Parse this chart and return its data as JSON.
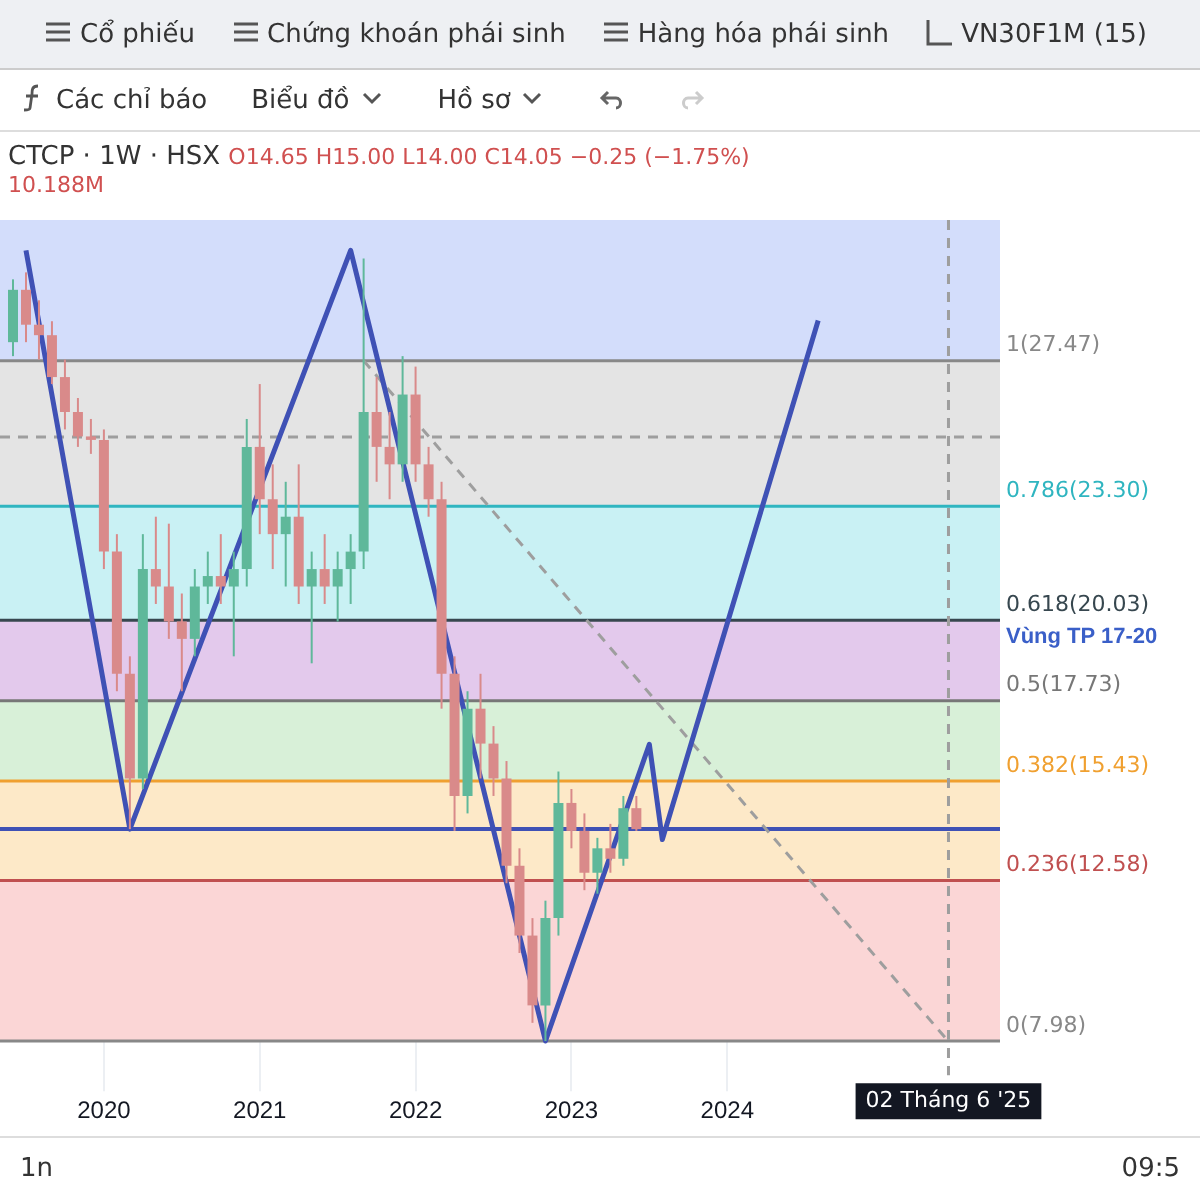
{
  "chart_data": {
    "type": "candlestick",
    "title": "CTCP · 1W · HSX",
    "subtitle": "O14.65 H15.00 L14.00 C14.05 −0.25 (−1.75%)",
    "annotations": [
      "Cổ phiếu",
      "Chứng khoán phái sinh",
      "Hàng hóa phái sinh",
      "VN30F1M (15)",
      "Các chỉ báo",
      "Biểu đồ",
      "Hồ sơ",
      "10.188M",
      "1n",
      "09:5"
    ],
    "x": [
      "2019-06",
      "2019-07",
      "2019-08",
      "2019-09",
      "2019-10",
      "2019-11",
      "2019-12",
      "2020-01",
      "2020-02",
      "2020-03",
      "2020-04",
      "2020-05",
      "2020-06",
      "2020-07",
      "2020-08",
      "2020-09",
      "2020-10",
      "2020-11",
      "2020-12",
      "2021-01",
      "2021-02",
      "2021-03",
      "2021-04",
      "2021-05",
      "2021-06",
      "2021-07",
      "2021-08",
      "2021-09",
      "2021-10",
      "2021-11",
      "2021-12",
      "2022-01",
      "2022-02",
      "2022-03",
      "2022-04",
      "2022-05",
      "2022-06",
      "2022-07",
      "2022-08",
      "2022-09",
      "2022-10",
      "2022-11",
      "2022-12",
      "2023-01",
      "2023-02",
      "2023-03",
      "2023-04",
      "2023-05",
      "2023-06"
    ],
    "ohlc": [
      [
        28,
        29.8,
        27.6,
        29.5
      ],
      [
        29.5,
        30,
        28,
        28.5
      ],
      [
        28.5,
        29.2,
        27.5,
        28.2
      ],
      [
        28.2,
        28.6,
        26.8,
        27
      ],
      [
        27,
        27.5,
        25.5,
        26
      ],
      [
        26,
        26.4,
        25,
        25.3
      ],
      [
        25.3,
        25.8,
        24.8,
        25.2
      ],
      [
        25.2,
        25.5,
        21.5,
        22
      ],
      [
        22,
        22.5,
        18,
        18.5
      ],
      [
        18.5,
        19,
        14.05,
        15.5
      ],
      [
        15.5,
        22.5,
        15.2,
        21.5
      ],
      [
        21.5,
        23,
        20.5,
        21
      ],
      [
        21,
        22.8,
        19.5,
        20
      ],
      [
        20,
        20.8,
        18,
        19.5
      ],
      [
        19.5,
        21.5,
        19,
        21
      ],
      [
        21,
        22,
        20.5,
        21.3
      ],
      [
        21.3,
        22.5,
        20.5,
        21
      ],
      [
        21,
        22,
        19,
        21.5
      ],
      [
        21.5,
        25.8,
        21,
        25
      ],
      [
        25,
        26.8,
        22.5,
        23.5
      ],
      [
        23.5,
        24.5,
        21.5,
        22.5
      ],
      [
        22.5,
        24,
        21,
        23
      ],
      [
        23,
        24.5,
        20.5,
        21
      ],
      [
        21,
        22,
        18.8,
        21.5
      ],
      [
        21.5,
        22.5,
        20.5,
        21
      ],
      [
        21,
        22,
        20,
        21.5
      ],
      [
        21.5,
        22.5,
        20.5,
        22
      ],
      [
        22,
        30.4,
        21.5,
        26
      ],
      [
        26,
        27,
        24,
        25
      ],
      [
        25,
        26,
        23.5,
        24.5
      ],
      [
        24.5,
        27.6,
        24,
        26.5
      ],
      [
        26.5,
        27.3,
        24,
        24.5
      ],
      [
        24.5,
        25,
        23,
        23.5
      ],
      [
        23.5,
        24,
        17.5,
        18.5
      ],
      [
        18.5,
        19,
        14,
        15
      ],
      [
        15,
        18,
        14.5,
        17.5
      ],
      [
        17.5,
        18.5,
        15.5,
        16.5
      ],
      [
        16.5,
        17,
        15,
        15.5
      ],
      [
        15.5,
        16,
        12.5,
        13
      ],
      [
        13,
        13.5,
        10.5,
        11
      ],
      [
        11,
        11.5,
        8.5,
        9
      ],
      [
        9,
        12,
        7.98,
        11.5
      ],
      [
        11.5,
        15.7,
        11,
        14.8
      ],
      [
        14.8,
        15.2,
        13.5,
        14
      ],
      [
        14,
        14.5,
        12.3,
        12.8
      ],
      [
        12.8,
        13.8,
        12.2,
        13.5
      ],
      [
        13.5,
        14.2,
        12.8,
        13.2
      ],
      [
        13.2,
        15,
        13,
        14.65
      ],
      [
        14.65,
        15,
        14,
        14.05
      ]
    ],
    "series": [
      {
        "type": "line",
        "color": "#3f51b5",
        "x": [
          "2019-07",
          "2020-03",
          "2021-08",
          "2022-11",
          "2023-07",
          "2023-08",
          "2024-08"
        ],
        "values": [
          30.63,
          14.05,
          30.63,
          7.98,
          16.48,
          13.75,
          28.62
        ]
      },
      {
        "type": "line",
        "color": "#9e9e9e",
        "line_style": "dashed",
        "x": [
          "2021-09",
          "2025-06"
        ],
        "values": [
          27.47,
          7.98
        ]
      }
    ],
    "xlim": [
      "2019-05",
      "2025-10"
    ],
    "xticks": [
      {
        "value": "2020",
        "label": "2020"
      },
      {
        "value": "2021",
        "label": "2021"
      },
      {
        "value": "2022",
        "label": "2022"
      },
      {
        "value": "2023",
        "label": "2023"
      },
      {
        "value": "2024",
        "label": "2024"
      }
    ],
    "ylim": [
      7,
      31.5
    ],
    "tick_labels": "x",
    "grid": "x",
    "legend": false,
    "marker": "none",
    "bands": [
      {
        "axis": "y",
        "from": 27.47,
        "to": 31.5,
        "color": "#d3ddfb"
      },
      {
        "axis": "y",
        "from": 23.3,
        "to": 27.47,
        "color": "#e4e4e4"
      },
      {
        "axis": "y",
        "from": 20.03,
        "to": 23.3,
        "color": "#c9f1f4"
      },
      {
        "axis": "y",
        "from": 17.73,
        "to": 20.03,
        "label": "Vùng TP 17-20",
        "color": "#e3c9ec"
      },
      {
        "axis": "y",
        "from": 15.43,
        "to": 17.73,
        "color": "#d8f0d8"
      },
      {
        "axis": "y",
        "from": 12.58,
        "to": 15.43,
        "color": "#fde9c8"
      },
      {
        "axis": "y",
        "from": 7.98,
        "to": 12.58,
        "color": "#fbd6d6"
      }
    ],
    "ref_lines": [
      {
        "axis": "y",
        "value": 27.47,
        "label": "1(27.47)",
        "color": "#888888"
      },
      {
        "axis": "y",
        "value": 23.3,
        "label": "0.786(23.30)",
        "color": "#2fb5c0"
      },
      {
        "axis": "y",
        "value": 20.03,
        "label": "0.618(20.03)",
        "color": "#37474f"
      },
      {
        "axis": "y",
        "value": 17.73,
        "label": "0.5(17.73)",
        "color": "#777777"
      },
      {
        "axis": "y",
        "value": 15.43,
        "label": "0.382(15.43)",
        "color": "#f0a030"
      },
      {
        "axis": "y",
        "value": 12.58,
        "label": "0.236(12.58)",
        "color": "#c05050"
      },
      {
        "axis": "y",
        "value": 7.98,
        "label": "0(7.98)",
        "color": "#888888"
      },
      {
        "axis": "y",
        "value": 14.05,
        "color": "#3f51b5"
      },
      {
        "axis": "y",
        "value": 25.28,
        "color": "#9e9e9e",
        "line_style": "dashed"
      },
      {
        "axis": "x",
        "value": "2025-06-02",
        "label": "02 Tháng 6 '25",
        "color": "#9e9e9e",
        "line_style": "dashed"
      }
    ]
  }
}
